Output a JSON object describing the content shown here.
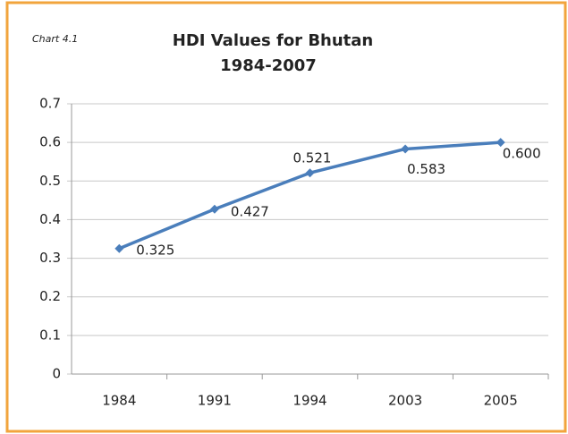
{
  "chart_data": {
    "type": "line",
    "annotation": "Chart 4.1",
    "title": "HDI Values for Bhutan",
    "subtitle": "1984-2007",
    "categories": [
      "1984",
      "1991",
      "1994",
      "2003",
      "2005"
    ],
    "series": [
      {
        "name": "HDI",
        "color": "#4a7ebb",
        "values": [
          0.325,
          0.427,
          0.521,
          0.583,
          0.6
        ],
        "value_labels": [
          "0.325",
          "0.427",
          "0.521",
          "0.583",
          "0.600"
        ]
      }
    ],
    "ylim": [
      0,
      0.7
    ],
    "yticks": [
      0,
      0.1,
      0.2,
      0.3,
      0.4,
      0.5,
      0.6,
      0.7
    ],
    "grid": true
  }
}
